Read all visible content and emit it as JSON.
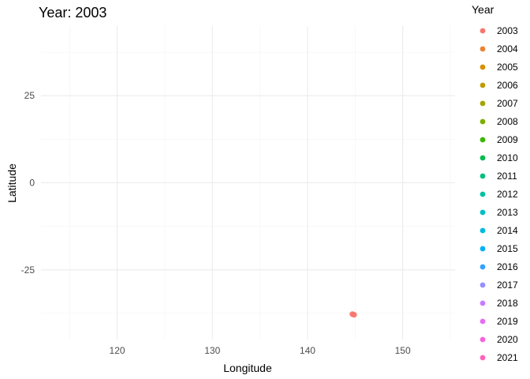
{
  "chart_data": {
    "type": "scatter",
    "title": "Year: 2003",
    "xlabel": "Longitude",
    "ylabel": "Latitude",
    "xlim": [
      112,
      155.5
    ],
    "ylim": [
      -45,
      45
    ],
    "x_ticks": [
      120,
      130,
      140,
      150
    ],
    "y_ticks": [
      -25,
      0,
      25
    ],
    "grid": true,
    "legend": {
      "title": "Year",
      "placement": "right",
      "entries": [
        {
          "label": "2003",
          "color": "#F8766D"
        },
        {
          "label": "2004",
          "color": "#EA8331"
        },
        {
          "label": "2005",
          "color": "#D89000"
        },
        {
          "label": "2006",
          "color": "#C09B00"
        },
        {
          "label": "2007",
          "color": "#A3A500"
        },
        {
          "label": "2008",
          "color": "#7CAE00"
        },
        {
          "label": "2009",
          "color": "#39B600"
        },
        {
          "label": "2010",
          "color": "#00BB4E"
        },
        {
          "label": "2011",
          "color": "#00BF7D"
        },
        {
          "label": "2012",
          "color": "#00C1A3"
        },
        {
          "label": "2013",
          "color": "#00BFC4"
        },
        {
          "label": "2014",
          "color": "#00BAE0"
        },
        {
          "label": "2015",
          "color": "#00B0F6"
        },
        {
          "label": "2016",
          "color": "#35A2FF"
        },
        {
          "label": "2017",
          "color": "#9590FF"
        },
        {
          "label": "2018",
          "color": "#C77CFF"
        },
        {
          "label": "2019",
          "color": "#E76BF3"
        },
        {
          "label": "2020",
          "color": "#FA62DB"
        },
        {
          "label": "2021",
          "color": "#FF62BC"
        }
      ]
    },
    "series": [
      {
        "year": "2003",
        "color": "#F8766D",
        "points": [
          [
            144.8,
            -37.8
          ],
          [
            144.9,
            -37.9
          ],
          [
            144.7,
            -37.7
          ]
        ]
      }
    ]
  }
}
